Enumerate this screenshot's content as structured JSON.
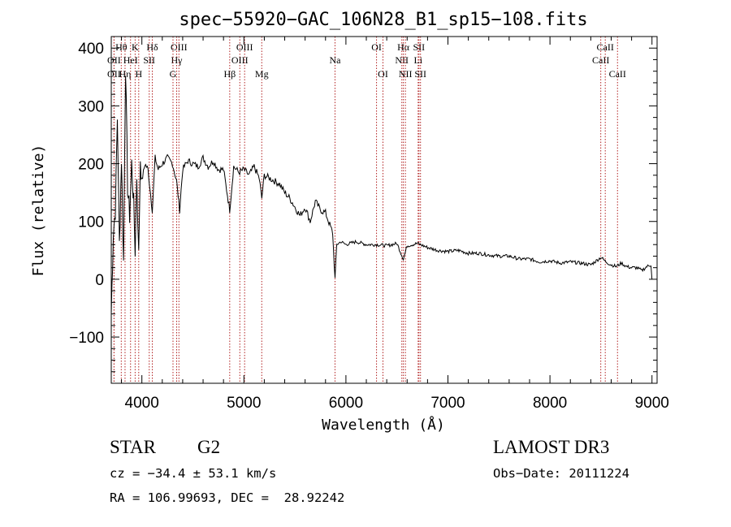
{
  "chart_data": {
    "type": "line",
    "title": "spec−55920−GAC_106N28_B1_sp15−108.fits",
    "xlabel": "Wavelength (Å)",
    "ylabel": "Flux (relative)",
    "xlim": [
      3700,
      9050
    ],
    "ylim": [
      -180,
      420
    ],
    "x_ticks": [
      4000,
      5000,
      6000,
      7000,
      8000,
      9000
    ],
    "x_tick_labels": [
      "4000",
      "5000",
      "6000",
      "7000",
      "8000",
      "9000"
    ],
    "y_ticks": [
      -100,
      0,
      100,
      200,
      300,
      400
    ],
    "y_tick_labels": [
      "−100",
      "0",
      "100",
      "200",
      "300",
      "400"
    ],
    "series": [
      {
        "name": "flux",
        "x": [
          3700,
          3720,
          3740,
          3760,
          3780,
          3800,
          3820,
          3840,
          3860,
          3880,
          3900,
          3920,
          3934,
          3950,
          3969,
          3985,
          4000,
          4030,
          4060,
          4102,
          4130,
          4160,
          4200,
          4250,
          4300,
          4340,
          4370,
          4400,
          4450,
          4500,
          4550,
          4600,
          4650,
          4700,
          4750,
          4800,
          4861,
          4900,
          4950,
          5000,
          5050,
          5100,
          5150,
          5175,
          5200,
          5250,
          5300,
          5350,
          5400,
          5450,
          5500,
          5550,
          5600,
          5650,
          5700,
          5750,
          5800,
          5850,
          5870,
          5893,
          5910,
          5950,
          6000,
          6100,
          6200,
          6300,
          6400,
          6500,
          6563,
          6600,
          6700,
          6800,
          6900,
          7000,
          7100,
          7200,
          7300,
          7400,
          7500,
          7600,
          7700,
          7800,
          7900,
          8000,
          8100,
          8200,
          8300,
          8400,
          8500,
          8550,
          8600,
          8650,
          8700,
          8750,
          8800,
          8850,
          8900,
          8950,
          8990,
          9000
        ],
        "values": [
          -60,
          80,
          120,
          280,
          60,
          210,
          30,
          370,
          160,
          110,
          200,
          130,
          50,
          180,
          40,
          210,
          170,
          200,
          190,
          120,
          210,
          190,
          200,
          210,
          200,
          170,
          120,
          190,
          205,
          200,
          195,
          210,
          195,
          205,
          190,
          190,
          120,
          195,
          185,
          190,
          180,
          195,
          175,
          140,
          180,
          175,
          170,
          165,
          150,
          140,
          125,
          110,
          125,
          100,
          135,
          120,
          115,
          90,
          80,
          0,
          60,
          65,
          60,
          65,
          60,
          60,
          58,
          62,
          35,
          58,
          62,
          55,
          50,
          48,
          50,
          45,
          45,
          42,
          40,
          40,
          35,
          35,
          30,
          32,
          28,
          30,
          28,
          25,
          38,
          30,
          25,
          22,
          28,
          22,
          20,
          20,
          15,
          22,
          25,
          0
        ]
      }
    ],
    "lines": [
      {
        "label": "Hθ",
        "x": 3798,
        "row": 1
      },
      {
        "label": "OII",
        "x": 3727,
        "row": 2
      },
      {
        "label": "OII",
        "x": 3727,
        "row": 3
      },
      {
        "label": "Hη",
        "x": 3835,
        "row": 3
      },
      {
        "label": "HeI",
        "x": 3889,
        "row": 2
      },
      {
        "label": "K",
        "x": 3934,
        "row": 1
      },
      {
        "label": "H",
        "x": 3969,
        "row": 3
      },
      {
        "label": "SII",
        "x": 4072,
        "row": 2
      },
      {
        "label": "Hδ",
        "x": 4102,
        "row": 1
      },
      {
        "label": "OIII",
        "x": 4363,
        "row": 1
      },
      {
        "label": "Hγ",
        "x": 4341,
        "row": 2
      },
      {
        "label": "G",
        "x": 4305,
        "row": 3
      },
      {
        "label": "Hβ",
        "x": 4861,
        "row": 3
      },
      {
        "label": "OIII",
        "x": 4960,
        "row": 2
      },
      {
        "label": "OIII",
        "x": 5007,
        "row": 1
      },
      {
        "label": "Mg",
        "x": 5175,
        "row": 3
      },
      {
        "label": "Na",
        "x": 5893,
        "row": 2
      },
      {
        "label": "OI",
        "x": 6300,
        "row": 1
      },
      {
        "label": "OI",
        "x": 6363,
        "row": 3
      },
      {
        "label": "NII",
        "x": 6548,
        "row": 2
      },
      {
        "label": "Hα",
        "x": 6563,
        "row": 1
      },
      {
        "label": "NII",
        "x": 6583,
        "row": 3
      },
      {
        "label": "SII",
        "x": 6716,
        "row": 1
      },
      {
        "label": "Li",
        "x": 6708,
        "row": 2
      },
      {
        "label": "SII",
        "x": 6731,
        "row": 3
      },
      {
        "label": "CaII",
        "x": 8498,
        "row": 2
      },
      {
        "label": "CaII",
        "x": 8542,
        "row": 1
      },
      {
        "label": "CaII",
        "x": 8662,
        "row": 3
      }
    ]
  },
  "info": {
    "object_class": "STAR",
    "subclass": "G2",
    "survey": "LAMOST DR3",
    "cz": "cz = −34.4 ± 53.1 km/s",
    "obs_date": "Obs−Date: 20111224",
    "coords": "RA = 106.99693, DEC =  28.92242"
  },
  "colors": {
    "line_marker": "#b22222",
    "spectrum": "#000000",
    "axis": "#000000"
  }
}
